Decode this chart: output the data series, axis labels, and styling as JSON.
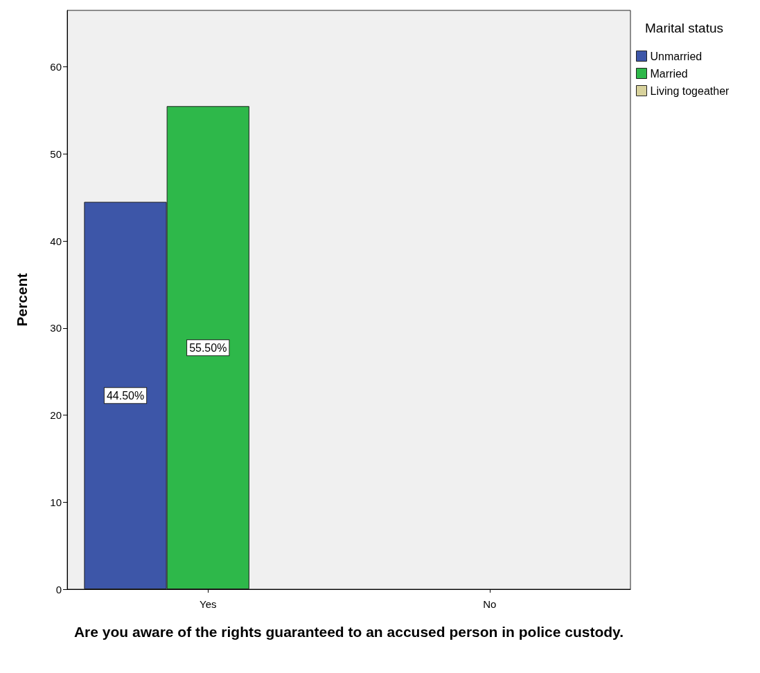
{
  "chart_data": {
    "type": "bar",
    "xlabel": "Are you aware of the rights guaranteed to an accused person in police custody.",
    "ylabel": "Percent",
    "legend_title": "Marital status",
    "categories": [
      "Yes",
      "No"
    ],
    "series": [
      {
        "name": "Unmarried",
        "color": "#3d56a8",
        "values": [
          44.5,
          null
        ],
        "value_labels": [
          "44.50%",
          null
        ]
      },
      {
        "name": "Married",
        "color": "#2eb84a",
        "values": [
          55.5,
          null
        ],
        "value_labels": [
          "55.50%",
          null
        ]
      },
      {
        "name": "Living togeather",
        "color": "#d8d29c",
        "values": [
          null,
          null
        ]
      }
    ],
    "ylim": [
      0,
      66.5
    ],
    "yticks": [
      0,
      10,
      20,
      30,
      40,
      50,
      60
    ],
    "grid": false,
    "legend": "top right"
  }
}
